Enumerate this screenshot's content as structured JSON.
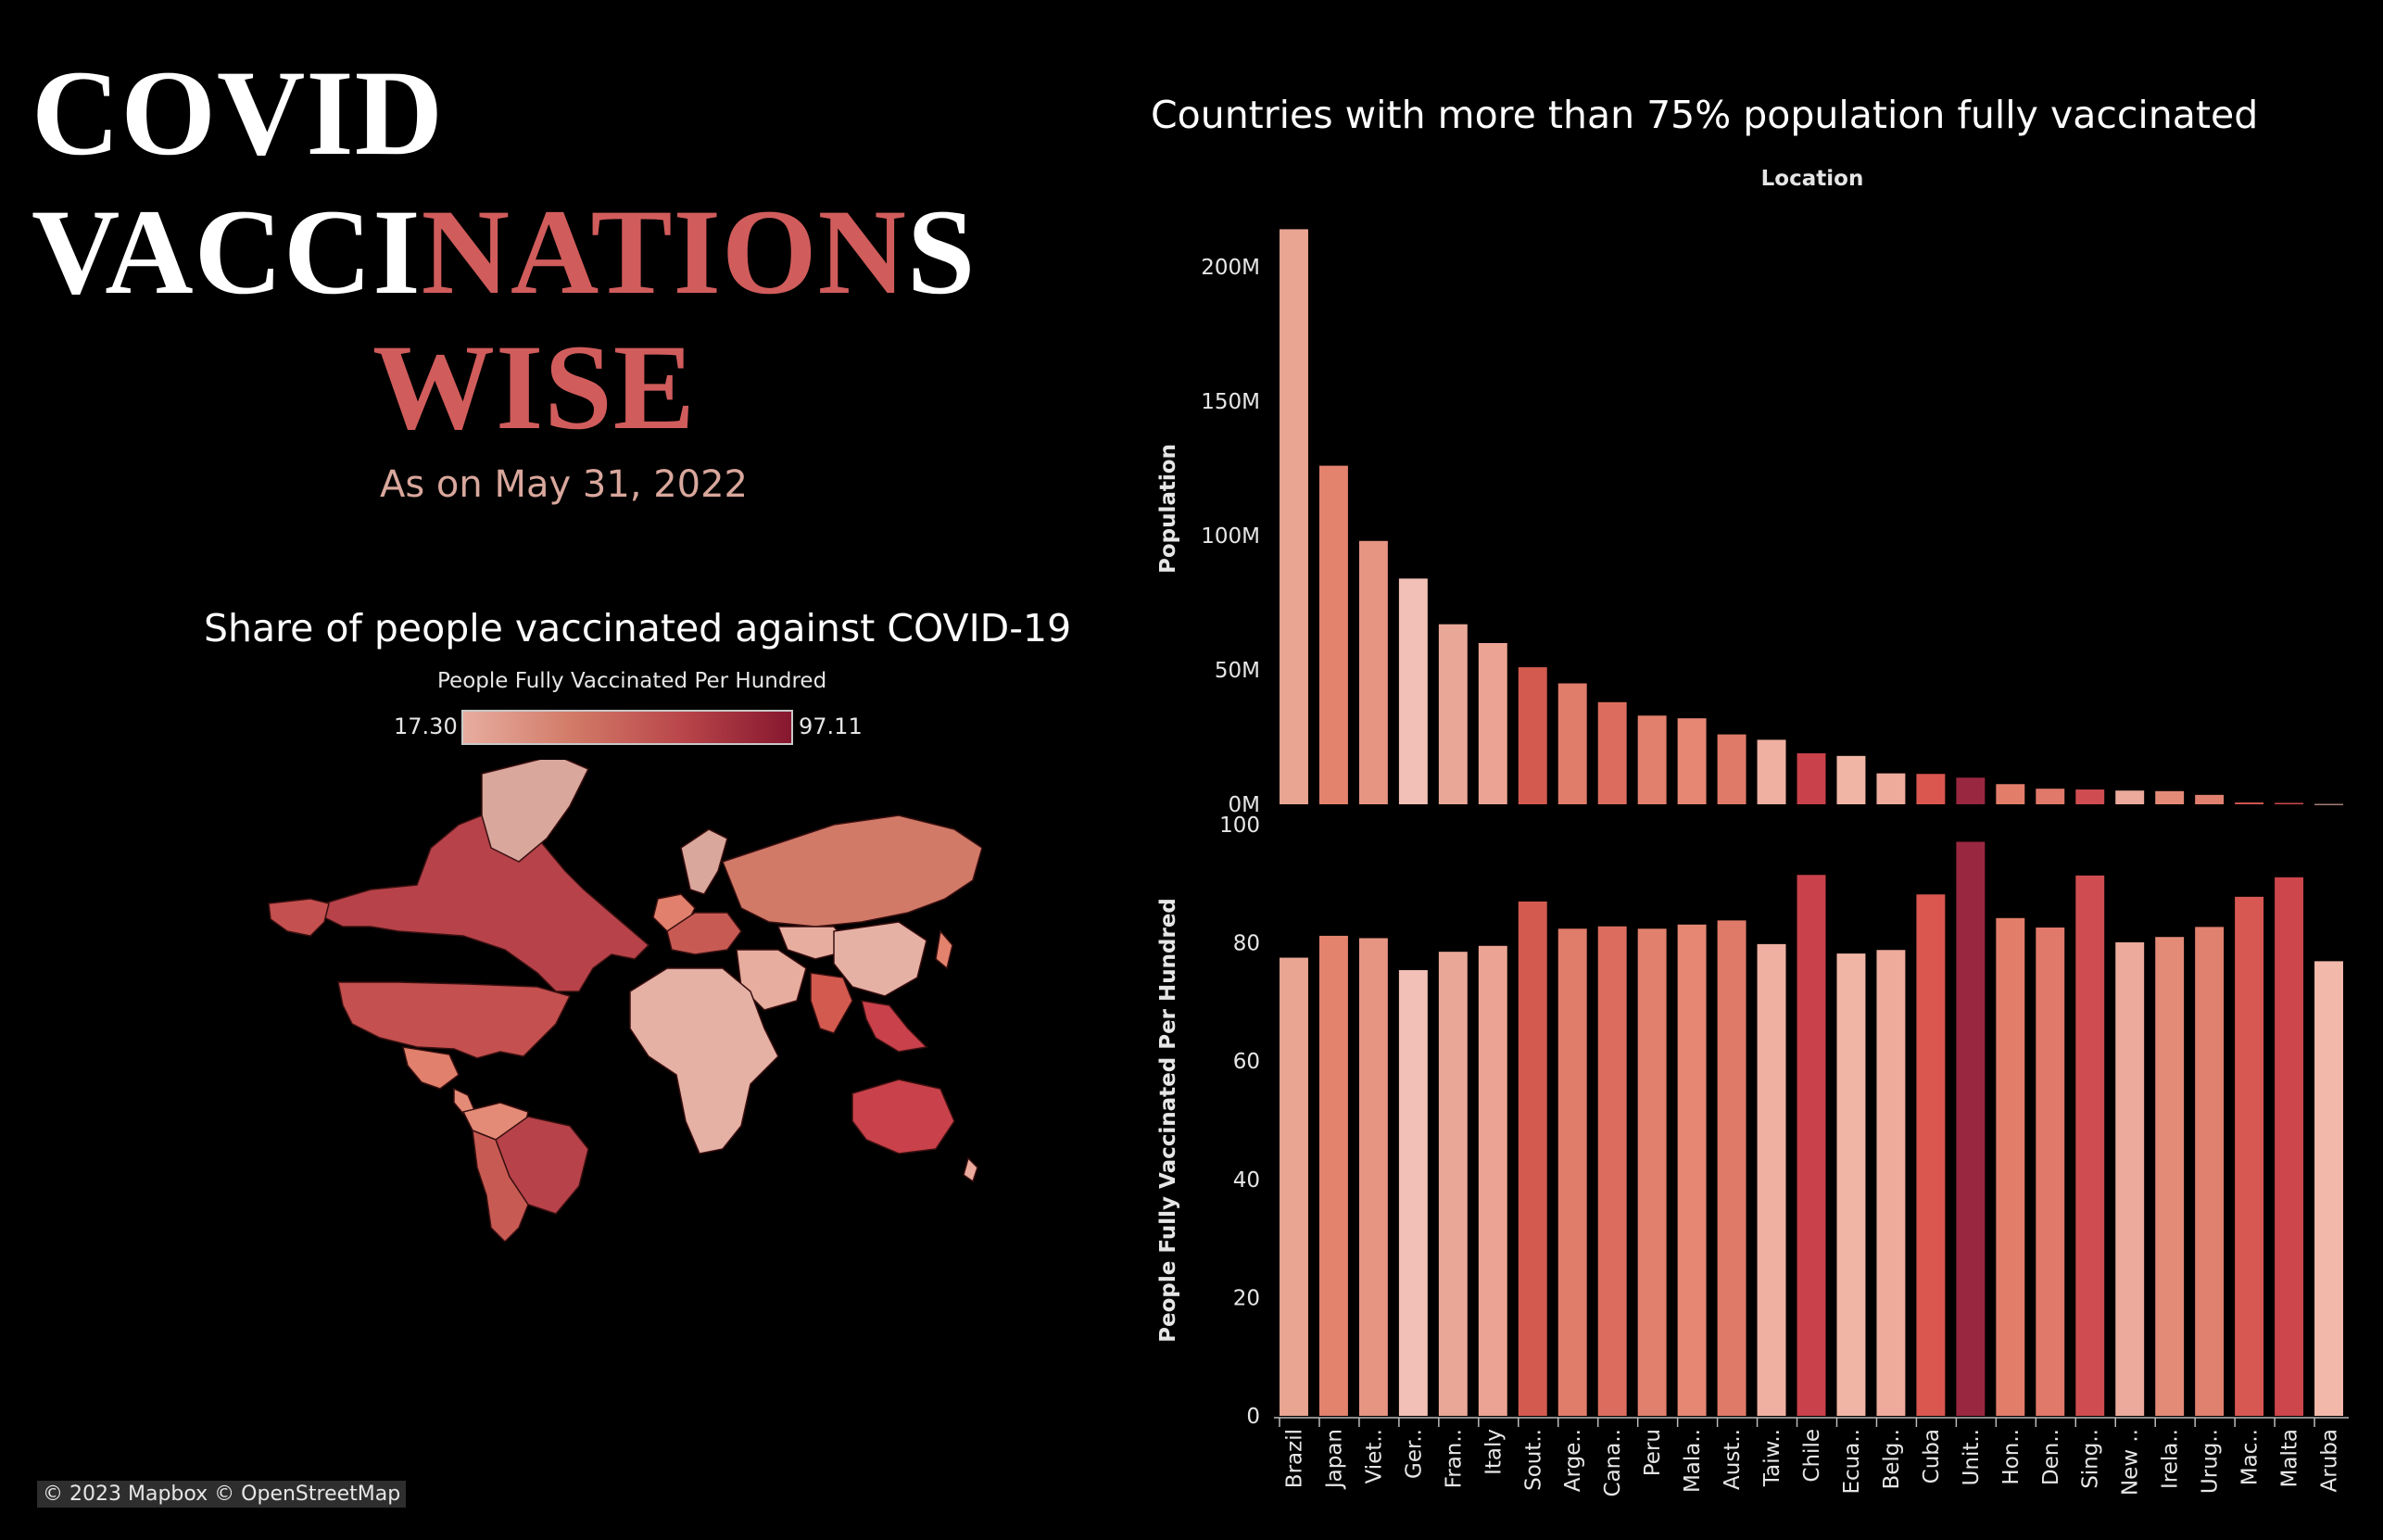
{
  "header": {
    "title_line1": "COVID",
    "title_line2_white_a": "VACCI",
    "title_line2_accent": "NATION",
    "title_line2_white_b": "S",
    "title_line3": "WISE",
    "subtitle": "As on May 31, 2022",
    "accent_color": "#d15c5c"
  },
  "map_panel": {
    "title": "Share of people vaccinated against COVID-19",
    "legend_title": "People Fully Vaccinated Per Hundred",
    "legend_min": "17.30",
    "legend_max": "97.11",
    "legend_colors": [
      "#e7ad9f",
      "#d27a68",
      "#b9464a",
      "#86172e"
    ],
    "attribution": "© 2023 Mapbox  © OpenStreetMap"
  },
  "bar_panel": {
    "title": "Countries with more than 75% population fully vaccinated"
  },
  "chart_data": [
    {
      "type": "bar",
      "title": "Countries with more than 75% population fully vaccinated",
      "xlabel": "Location",
      "ylabel": "Population",
      "ylim": [
        0,
        220000000
      ],
      "yticks": [
        0,
        50000000,
        100000000,
        150000000,
        200000000
      ],
      "ytick_labels": [
        "0M",
        "50M",
        "100M",
        "150M",
        "200M"
      ],
      "categories": [
        "Brazil",
        "Japan",
        "Viet..",
        "Ger..",
        "Fran..",
        "Italy",
        "Sout..",
        "Arge..",
        "Cana..",
        "Peru",
        "Mala..",
        "Aust..",
        "Taiw..",
        "Chile",
        "Ecua..",
        "Belg..",
        "Cuba",
        "Unit..",
        "Hon..",
        "Den..",
        "Sing..",
        "New ..",
        "Irela..",
        "Urug..",
        "Mac..",
        "Malta",
        "Aruba"
      ],
      "values": [
        214000000,
        126000000,
        98000000,
        84000000,
        67000000,
        60000000,
        51000000,
        45000000,
        38000000,
        33000000,
        32000000,
        26000000,
        24000000,
        19000000,
        18000000,
        11500000,
        11300000,
        9900000,
        7500000,
        5800000,
        5500000,
        5100000,
        4900000,
        3500000,
        660000,
        520000,
        107000
      ],
      "colors": [
        "#e9a492",
        "#e3826d",
        "#e69582",
        "#f2c0b6",
        "#e9a897",
        "#eba493",
        "#d35a4f",
        "#e07c6a",
        "#dc6d5e",
        "#e1806c",
        "#e58773",
        "#e07a68",
        "#efb0a1",
        "#c9414a",
        "#f0b5a5",
        "#eeaa9b",
        "#d9574f",
        "#9a2740",
        "#e27d69",
        "#e0796a",
        "#cf4d50",
        "#ebaa9c",
        "#e48b78",
        "#e0806f",
        "#d75853",
        "#cc464b",
        "#f2b9ab"
      ]
    },
    {
      "type": "bar",
      "ylabel": "People Fully Vaccinated Per Hundred",
      "ylim": [
        0,
        100
      ],
      "yticks": [
        0,
        20,
        40,
        60,
        80,
        100
      ],
      "ytick_labels": [
        "0",
        "20",
        "40",
        "60",
        "80",
        "100"
      ],
      "categories": [
        "Brazil",
        "Japan",
        "Viet..",
        "Ger..",
        "Fran..",
        "Italy",
        "Sout..",
        "Arge..",
        "Cana..",
        "Peru",
        "Mala..",
        "Aust..",
        "Taiw..",
        "Chile",
        "Ecua..",
        "Belg..",
        "Cuba",
        "Unit..",
        "Hon..",
        "Den..",
        "Sing..",
        "New ..",
        "Irela..",
        "Urug..",
        "Mac..",
        "Malta",
        "Aruba"
      ],
      "values": [
        77.5,
        81.2,
        80.8,
        75.4,
        78.5,
        79.5,
        87.0,
        82.4,
        82.8,
        82.4,
        83.1,
        83.8,
        79.8,
        91.5,
        78.2,
        78.8,
        88.2,
        97.1,
        84.2,
        82.6,
        91.4,
        80.1,
        81.0,
        82.7,
        87.8,
        91.1,
        76.9
      ],
      "colors": [
        "#e9a492",
        "#e3826d",
        "#e69582",
        "#f2c0b6",
        "#e9a897",
        "#eba493",
        "#d35a4f",
        "#e07c6a",
        "#dc6d5e",
        "#e1806c",
        "#e58773",
        "#e07a68",
        "#efb0a1",
        "#c9414a",
        "#f0b5a5",
        "#eeaa9b",
        "#d9574f",
        "#9a2740",
        "#e27d69",
        "#e0796a",
        "#cf4d50",
        "#ebaa9c",
        "#e48b78",
        "#e0806f",
        "#d75853",
        "#cc464b",
        "#f2b9ab"
      ]
    }
  ]
}
